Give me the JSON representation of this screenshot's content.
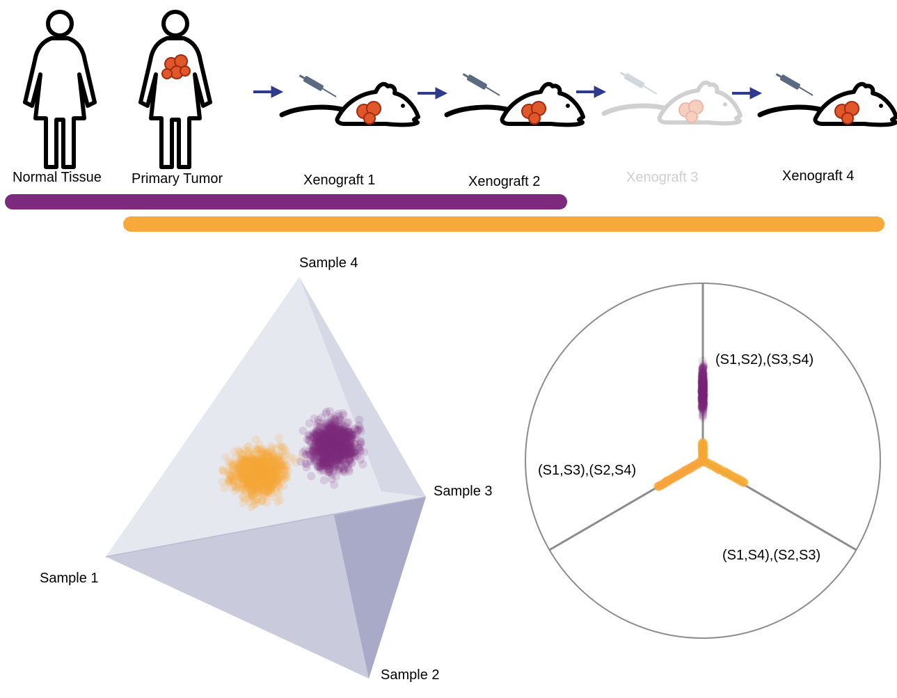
{
  "pipeline": {
    "stages": [
      {
        "label": "Normal Tissue",
        "icon": "woman-figure-icon"
      },
      {
        "label": "Primary Tumor",
        "icon": "woman-with-tumor-icon"
      },
      {
        "label": "Xenograft 1",
        "icon": "mouse-with-tumor-icon"
      },
      {
        "label": "Xenograft 2",
        "icon": "mouse-with-tumor-icon"
      },
      {
        "label": "Xenograft 3",
        "icon": "mouse-with-tumor-icon",
        "faded": true
      },
      {
        "label": "Xenograft 4",
        "icon": "mouse-with-tumor-icon"
      }
    ],
    "colors": {
      "purple": "#7b2a7e",
      "orange": "#f7a93b",
      "arrow": "#2e3a8c",
      "tumor": "#e0582a"
    }
  },
  "tetrahedron": {
    "vertices": [
      "Sample 1",
      "Sample 2",
      "Sample 3",
      "Sample 4"
    ],
    "face_colors": [
      "#e6e8f0",
      "#c9cbdd",
      "#a8aac8"
    ]
  },
  "topology_plot": {
    "axes": [
      "(S1,S2),(S3,S4)",
      "(S1,S3),(S2,S4)",
      "(S1,S4),(S2,S3)"
    ],
    "axis_color": "#8c8c8c"
  }
}
